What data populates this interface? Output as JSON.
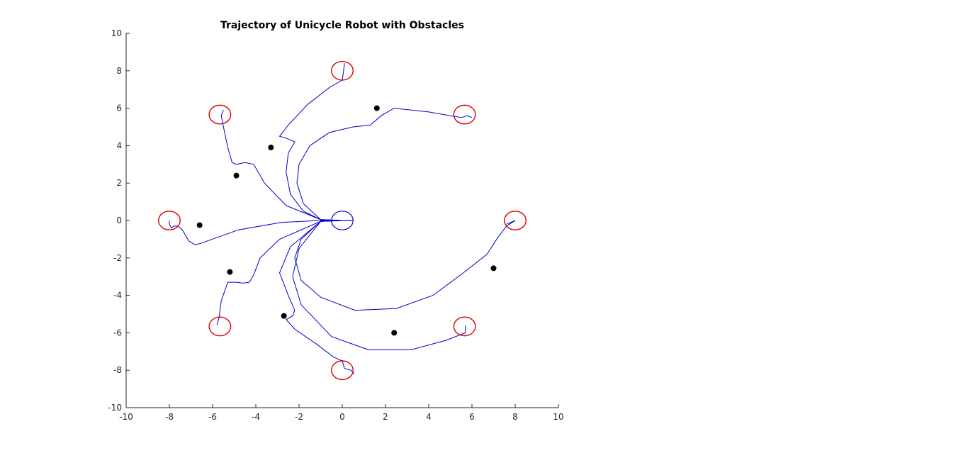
{
  "chart_data": {
    "type": "scatter",
    "title": "Trajectory of Unicycle Robot with Obstacles",
    "xlabel": "",
    "ylabel": "",
    "xlim": [
      -10,
      10
    ],
    "ylim": [
      -10,
      10
    ],
    "x_ticks": [
      "-10",
      "-8",
      "-6",
      "-4",
      "-2",
      "0",
      "2",
      "4",
      "6",
      "8",
      "10"
    ],
    "y_ticks": [
      "10",
      "8",
      "6",
      "4",
      "2",
      "0",
      "-2",
      "-4",
      "-6",
      "-8",
      "-10"
    ],
    "grid": false,
    "legend": "none",
    "colors": {
      "trajectory": "#0000cc",
      "start_marker": "#0000cc",
      "goal_marker": "#dd0000",
      "obstacle": "#000000"
    },
    "start_marker": {
      "x": 0,
      "y": 0,
      "radius": 0.5
    },
    "goal_markers": [
      {
        "x": 0,
        "y": 8
      },
      {
        "x": 5.66,
        "y": 5.66
      },
      {
        "x": 8,
        "y": 0
      },
      {
        "x": 5.66,
        "y": -5.66
      },
      {
        "x": 0,
        "y": -8
      },
      {
        "x": -5.66,
        "y": -5.66
      },
      {
        "x": -8,
        "y": 0
      },
      {
        "x": -5.66,
        "y": 5.66
      }
    ],
    "goal_marker_radius": 0.5,
    "obstacles": [
      {
        "x": 1.6,
        "y": 6.0
      },
      {
        "x": -3.3,
        "y": 3.9
      },
      {
        "x": -4.9,
        "y": 2.4
      },
      {
        "x": -6.6,
        "y": -0.25
      },
      {
        "x": -5.2,
        "y": -2.75
      },
      {
        "x": -2.7,
        "y": -5.1
      },
      {
        "x": 2.4,
        "y": -6.0
      },
      {
        "x": 7.0,
        "y": -2.55
      }
    ],
    "trajectories": [
      {
        "points": [
          [
            0,
            0
          ],
          [
            -1,
            0.05
          ],
          [
            -1.8,
            0.5
          ],
          [
            -2.4,
            1.4
          ],
          [
            -2.6,
            2.6
          ],
          [
            -2.5,
            3.6
          ],
          [
            -2.2,
            4.2
          ],
          [
            -2.6,
            4.4
          ],
          [
            -2.9,
            4.5
          ],
          [
            -2.5,
            5.1
          ],
          [
            -1.6,
            6.2
          ],
          [
            -0.6,
            7.1
          ],
          [
            0,
            7.5
          ],
          [
            0.05,
            7.9
          ],
          [
            0.1,
            8.4
          ]
        ]
      },
      {
        "points": [
          [
            0,
            0
          ],
          [
            -1,
            0.05
          ],
          [
            -1.8,
            0.9
          ],
          [
            -2.1,
            2.0
          ],
          [
            -2.0,
            3.0
          ],
          [
            -1.5,
            4.0
          ],
          [
            -0.6,
            4.7
          ],
          [
            0.5,
            5.0
          ],
          [
            1.3,
            5.1
          ],
          [
            1.8,
            5.6
          ],
          [
            2.4,
            6.0
          ],
          [
            4.0,
            5.8
          ],
          [
            5.5,
            5.5
          ],
          [
            5.8,
            5.6
          ],
          [
            6.0,
            5.5
          ]
        ]
      },
      {
        "points": [
          [
            0,
            0
          ],
          [
            -1,
            -0.05
          ],
          [
            -1.9,
            -1.0
          ],
          [
            -2.2,
            -2.0
          ],
          [
            -1.9,
            -3.2
          ],
          [
            -1.0,
            -4.1
          ],
          [
            0.6,
            -4.8
          ],
          [
            2.5,
            -4.7
          ],
          [
            4.2,
            -4.0
          ],
          [
            5.6,
            -2.8
          ],
          [
            6.7,
            -1.8
          ],
          [
            7.2,
            -0.9
          ],
          [
            7.6,
            -0.3
          ],
          [
            8.0,
            0
          ],
          [
            7.6,
            -0.2
          ]
        ]
      },
      {
        "points": [
          [
            0,
            0
          ],
          [
            -1,
            -0.05
          ],
          [
            -2.0,
            -1.5
          ],
          [
            -2.3,
            -3.0
          ],
          [
            -1.9,
            -4.5
          ],
          [
            -0.5,
            -6.2
          ],
          [
            1.2,
            -6.9
          ],
          [
            3.2,
            -6.9
          ],
          [
            4.8,
            -6.4
          ],
          [
            5.7,
            -6.0
          ],
          [
            5.7,
            -5.6
          ]
        ]
      },
      {
        "points": [
          [
            0,
            0
          ],
          [
            -1,
            -0.05
          ],
          [
            -2.4,
            -1.4
          ],
          [
            -2.9,
            -2.8
          ],
          [
            -2.5,
            -4.0
          ],
          [
            -2.2,
            -4.8
          ],
          [
            -2.3,
            -5.1
          ],
          [
            -2.6,
            -5.3
          ],
          [
            -2.2,
            -5.8
          ],
          [
            -1.2,
            -6.6
          ],
          [
            -0.4,
            -7.3
          ],
          [
            0,
            -7.5
          ],
          [
            0.1,
            -7.9
          ],
          [
            0.4,
            -8.0
          ],
          [
            0.55,
            -8.2
          ]
        ]
      },
      {
        "points": [
          [
            0,
            0
          ],
          [
            -1,
            -0.05
          ],
          [
            -2.9,
            -1.0
          ],
          [
            -3.8,
            -2.0
          ],
          [
            -4.1,
            -2.9
          ],
          [
            -4.3,
            -3.3
          ],
          [
            -4.6,
            -3.35
          ],
          [
            -4.9,
            -3.3
          ],
          [
            -5.3,
            -3.3
          ],
          [
            -5.6,
            -4.3
          ],
          [
            -5.7,
            -5.2
          ],
          [
            -5.8,
            -5.6
          ]
        ]
      },
      {
        "points": [
          [
            0,
            0
          ],
          [
            -1,
            0
          ],
          [
            -2.8,
            -0.1
          ],
          [
            -4.8,
            -0.5
          ],
          [
            -6.5,
            -1.2
          ],
          [
            -6.8,
            -1.3
          ],
          [
            -7.1,
            -1.1
          ],
          [
            -7.4,
            -0.5
          ],
          [
            -7.6,
            -0.3
          ],
          [
            -7.8,
            -0.3
          ],
          [
            -7.9,
            -0.4
          ],
          [
            -8.0,
            -0.2
          ],
          [
            -8.0,
            0.0
          ]
        ]
      },
      {
        "points": [
          [
            0,
            0
          ],
          [
            -1,
            0.05
          ],
          [
            -2.6,
            0.8
          ],
          [
            -3.6,
            2.0
          ],
          [
            -4.1,
            3.0
          ],
          [
            -4.5,
            3.1
          ],
          [
            -4.9,
            3.0
          ],
          [
            -5.1,
            3.1
          ],
          [
            -5.3,
            3.9
          ],
          [
            -5.5,
            5.0
          ],
          [
            -5.6,
            5.6
          ],
          [
            -5.5,
            5.9
          ]
        ]
      }
    ]
  }
}
